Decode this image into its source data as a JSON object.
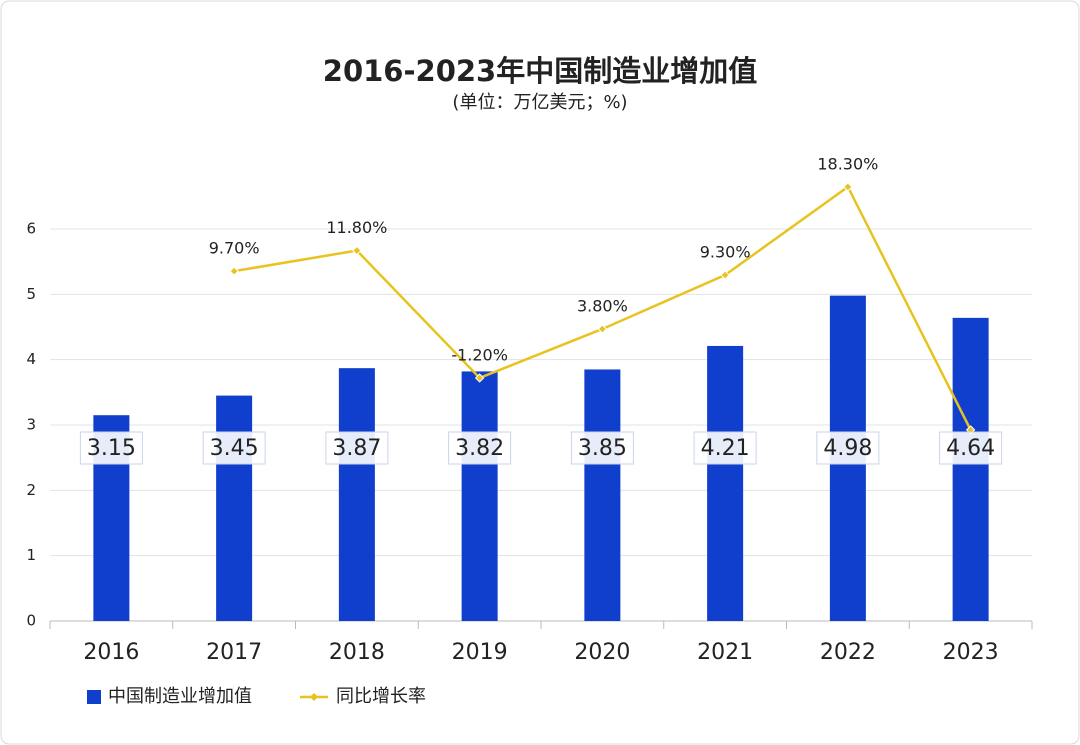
{
  "chart_data": {
    "type": "bar",
    "title": "2016-2023年中国制造业增加值",
    "subtitle": "(单位：万亿美元；%)",
    "categories": [
      "2016",
      "2017",
      "2018",
      "2019",
      "2020",
      "2021",
      "2022",
      "2023"
    ],
    "series": [
      {
        "name": "中国制造业增加值",
        "type": "bar",
        "color": "#0f3fcc",
        "values": [
          3.15,
          3.45,
          3.87,
          3.82,
          3.85,
          4.21,
          4.98,
          4.64
        ]
      },
      {
        "name": "同比增长率",
        "type": "line",
        "axis": "y2",
        "color": "#e8c31f",
        "values": [
          null,
          9.7,
          11.8,
          -1.2,
          3.8,
          9.3,
          18.3,
          -6.5
        ],
        "value_labels": [
          null,
          "9.70%",
          "11.80%",
          "-1.20%",
          "3.80%",
          "9.30%",
          "18.30%",
          null
        ]
      }
    ],
    "ylim": [
      0,
      6
    ],
    "yticks": [
      0,
      1,
      2,
      3,
      4,
      5,
      6
    ],
    "y2lim": [
      -26,
      14
    ],
    "grid": true,
    "legend": "bottom-left"
  }
}
